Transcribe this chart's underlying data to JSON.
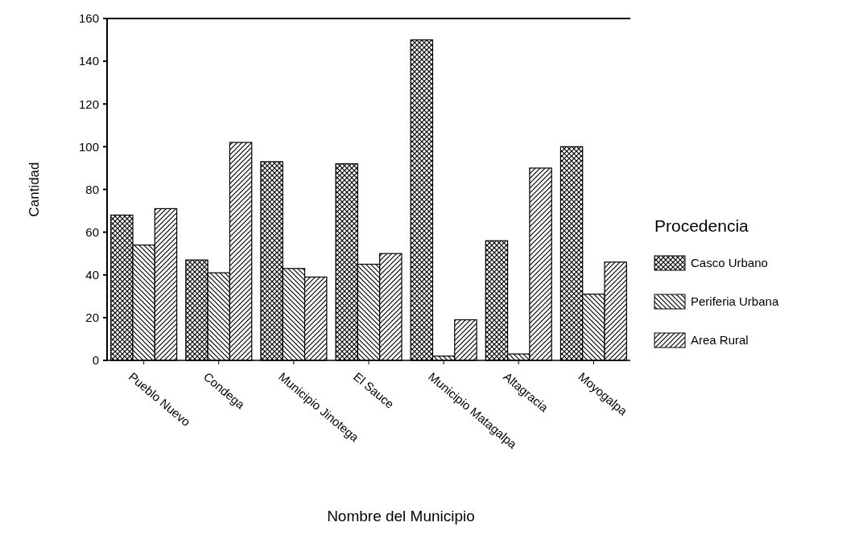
{
  "chart_data": {
    "type": "bar",
    "xlabel": "Nombre del Municipio",
    "ylabel": "Cantidad",
    "legend_title": "Procedencia",
    "legend": "right",
    "categories": [
      "Pueblo Nuevo",
      "Condega",
      "Municipio Jinotega",
      "El Sauce",
      "Municipio Matagalpa",
      "Altagracia",
      "Moyogalpa"
    ],
    "series": [
      {
        "name": "Casco Urbano",
        "color": "#000000",
        "values": [
          68,
          47,
          93,
          92,
          150,
          56,
          100
        ]
      },
      {
        "name": "Periferia Urbana",
        "color": "#000000",
        "values": [
          54,
          41,
          43,
          45,
          2,
          3,
          31
        ]
      },
      {
        "name": "Area Rural",
        "color": "#000000",
        "values": [
          71,
          102,
          39,
          50,
          19,
          90,
          46
        ]
      }
    ],
    "ylim": [
      0,
      160
    ],
    "yticks": [
      0,
      20,
      40,
      60,
      80,
      100,
      120,
      140,
      160
    ]
  }
}
